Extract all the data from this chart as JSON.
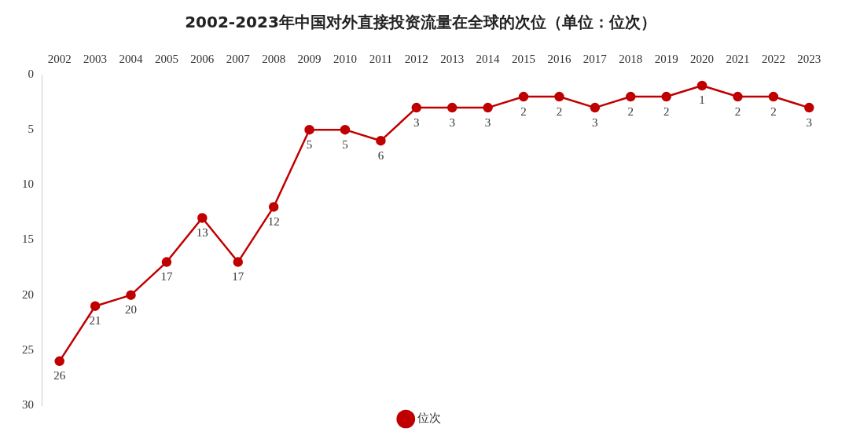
{
  "chart_data": {
    "type": "line",
    "title": "2002-2023年中国对外直接投资流量在全球的次位（单位：位次）",
    "categories": [
      "2002",
      "2003",
      "2004",
      "2005",
      "2006",
      "2007",
      "2008",
      "2009",
      "2010",
      "2011",
      "2012",
      "2013",
      "2014",
      "2015",
      "2016",
      "2017",
      "2018",
      "2019",
      "2020",
      "2021",
      "2022",
      "2023"
    ],
    "series": [
      {
        "name": "位次",
        "color": "#c00000",
        "values": [
          26,
          21,
          20,
          17,
          13,
          17,
          12,
          5,
          5,
          6,
          3,
          3,
          3,
          2,
          2,
          3,
          2,
          2,
          1,
          2,
          2,
          3
        ]
      }
    ],
    "ylim": [
      30,
      0
    ],
    "yticks": [
      0,
      5,
      10,
      15,
      20,
      25,
      30
    ],
    "grid": false,
    "legend": "bottom",
    "marker": "circle",
    "line_style": "solid",
    "data_labels": true
  }
}
